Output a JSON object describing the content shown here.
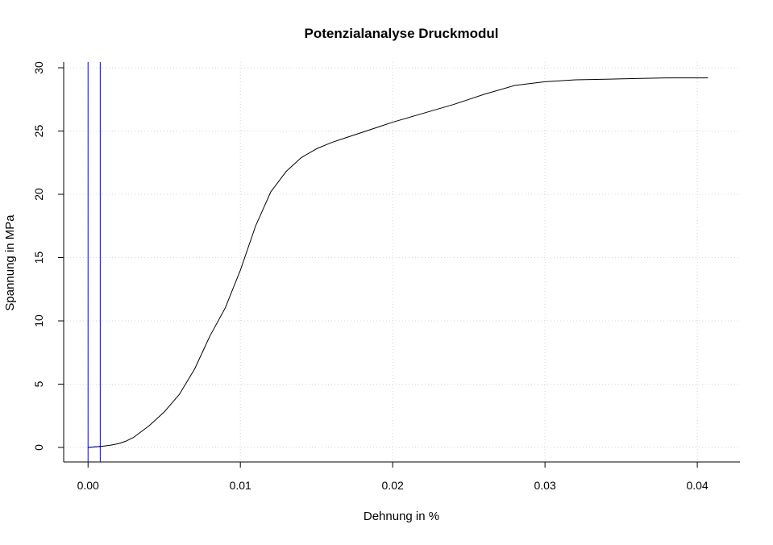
{
  "chart_data": {
    "type": "line",
    "title": "Potenzialanalyse Druckmodul",
    "xlabel": "Dehnung in %",
    "ylabel": "Spannung in MPa",
    "xlim": [
      -0.0016,
      0.0428
    ],
    "ylim": [
      -1.15,
      30.45
    ],
    "x_ticks": [
      0.0,
      0.01,
      0.02,
      0.03,
      0.04
    ],
    "x_tick_labels": [
      "0.00",
      "0.01",
      "0.02",
      "0.03",
      "0.04"
    ],
    "y_ticks": [
      0,
      5,
      10,
      15,
      20,
      25,
      30
    ],
    "y_tick_labels": [
      "0",
      "5",
      "10",
      "15",
      "20",
      "25",
      "30"
    ],
    "grid": true,
    "series": [
      {
        "color": "#000000",
        "x": [
          0.0,
          0.0005,
          0.001,
          0.0015,
          0.002,
          0.0025,
          0.003,
          0.004,
          0.005,
          0.006,
          0.007,
          0.008,
          0.009,
          0.01,
          0.011,
          0.012,
          0.013,
          0.014,
          0.015,
          0.016,
          0.017,
          0.018,
          0.019,
          0.02,
          0.022,
          0.024,
          0.025,
          0.026,
          0.028,
          0.03,
          0.032,
          0.034,
          0.036,
          0.038,
          0.04,
          0.0407
        ],
        "y": [
          0.0,
          0.05,
          0.1,
          0.18,
          0.3,
          0.5,
          0.8,
          1.7,
          2.8,
          4.2,
          6.2,
          8.8,
          11.0,
          14.0,
          17.5,
          20.2,
          21.8,
          22.9,
          23.6,
          24.1,
          24.5,
          24.9,
          25.3,
          25.7,
          26.4,
          27.1,
          27.5,
          27.9,
          28.6,
          28.9,
          29.05,
          29.1,
          29.15,
          29.2,
          29.2,
          29.2
        ]
      },
      {
        "color": "#0000cc",
        "x": [
          0.0,
          0.0008
        ],
        "y": [
          0.0,
          0.08
        ]
      }
    ],
    "vertical_lines": [
      {
        "x": 0.0,
        "color": "#0000ff"
      },
      {
        "x": 0.0008,
        "color": "#0000ff"
      }
    ],
    "grid_color": "#d3d3d3"
  }
}
